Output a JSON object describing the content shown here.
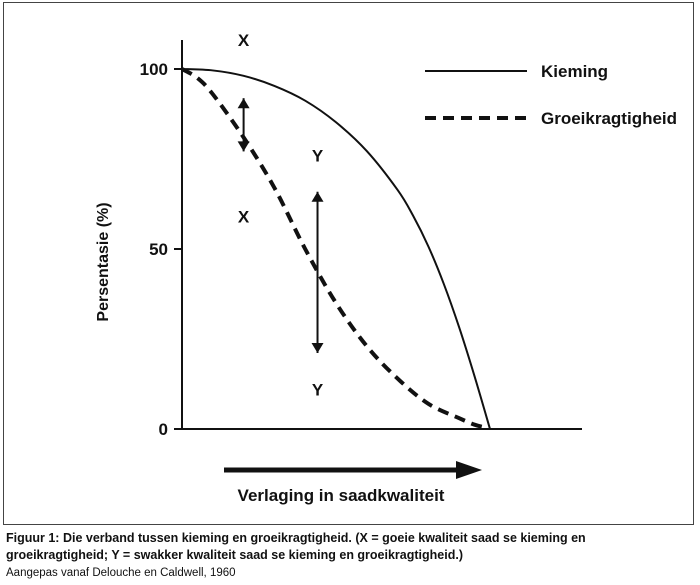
{
  "chart_data": {
    "type": "line",
    "ylabel": "Persentasie (%)",
    "xlabel": "Verlaging in saadkwaliteit",
    "yticks": [
      "100",
      "50",
      "0"
    ],
    "ylim": [
      0,
      100
    ],
    "xlim": [
      0,
      100
    ],
    "grid": false,
    "legend_position": "top-right",
    "series": [
      {
        "name": "Kieming",
        "style": "solid",
        "x": [
          0,
          10,
          20,
          30,
          40,
          50,
          60,
          70,
          75,
          80,
          85,
          90,
          95,
          100
        ],
        "y": [
          100,
          99.6,
          98.1,
          95.3,
          91.2,
          85.2,
          77.2,
          66.4,
          59.3,
          50.7,
          40.3,
          28.2,
          14.6,
          0
        ]
      },
      {
        "name": "Groeikragtigheid",
        "style": "dashed",
        "x": [
          0,
          5,
          10,
          20,
          30,
          40,
          50,
          60,
          70,
          80,
          90,
          95,
          99
        ],
        "y": [
          100,
          97.5,
          93,
          81,
          67,
          50,
          35,
          23,
          14,
          7,
          3,
          1.2,
          0.3
        ]
      }
    ],
    "annotations": [
      {
        "label": "X",
        "at_x": 20,
        "at_y": 108
      },
      {
        "label": "X",
        "at_x": 20,
        "at_y": 59
      },
      {
        "label": "Y",
        "at_x": 44,
        "at_y": 76
      },
      {
        "label": "Y",
        "at_x": 44,
        "at_y": 11
      }
    ],
    "arrows": [
      {
        "x": 20,
        "from_y": 93,
        "to_y": 76
      },
      {
        "x": 44,
        "from_y": 67,
        "to_y": 20
      }
    ]
  },
  "caption": {
    "line1": "Figuur 1: Die verband tussen kieming en groeikragtigheid. (X = goeie kwaliteit saad se kieming en",
    "line2": "groeikragtigheid; Y = swakker kwaliteit saad se kieming en groeikragtigheid.)",
    "source": "Aangepas vanaf Delouche en Caldwell, 1960"
  }
}
